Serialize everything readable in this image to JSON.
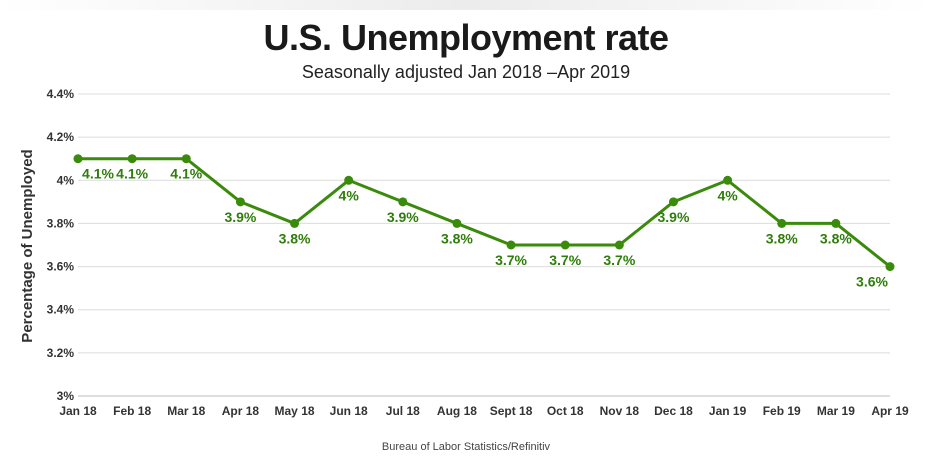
{
  "chart_data": {
    "type": "line",
    "title": "U.S. Unemployment rate",
    "subtitle": "Seasonally adjusted Jan 2018 –Apr 2019",
    "ylabel": "Percentage of Unemployed",
    "xlabel": "",
    "source": "Bureau of Labor Statistics/Refinitiv",
    "categories": [
      "Jan 18",
      "Feb 18",
      "Mar 18",
      "Apr 18",
      "May 18",
      "Jun 18",
      "Jul 18",
      "Aug 18",
      "Sept 18",
      "Oct 18",
      "Nov 18",
      "Dec 18",
      "Jan 19",
      "Feb 19",
      "Mar 19",
      "Apr 19"
    ],
    "values": [
      4.1,
      4.1,
      4.1,
      3.9,
      3.8,
      4.0,
      3.9,
      3.8,
      3.7,
      3.7,
      3.7,
      3.9,
      4.0,
      3.8,
      3.8,
      3.6
    ],
    "data_labels": [
      "4.1%",
      "4.1%",
      "4.1%",
      "3.9%",
      "3.8%",
      "4%",
      "3.9%",
      "3.8%",
      "3.7%",
      "3.7%",
      "3.7%",
      "3.9%",
      "4%",
      "3.8%",
      "3.8%",
      "3.6%"
    ],
    "ylim": [
      3.0,
      4.4
    ],
    "yticks": [
      3.0,
      3.2,
      3.4,
      3.6,
      3.8,
      4.0,
      4.2,
      4.4
    ],
    "ytick_labels": [
      "3%",
      "3.2%",
      "3.4%",
      "3.6%",
      "3.8%",
      "4%",
      "4.2%",
      "4.4%"
    ],
    "grid": true,
    "legend": "none",
    "colors": {
      "line": "#3a8a0c",
      "label": "#2f7d0a"
    }
  }
}
